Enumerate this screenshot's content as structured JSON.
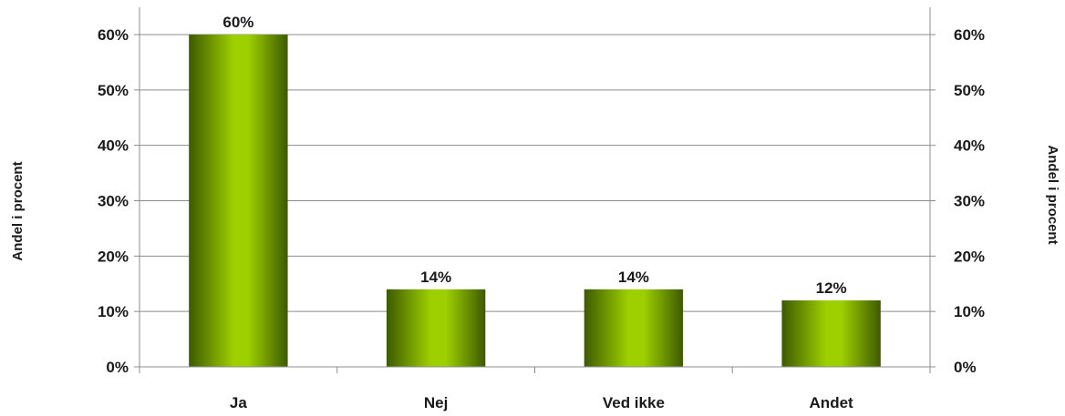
{
  "chart_data": {
    "type": "bar",
    "categories": [
      "Ja",
      "Nej",
      "Ved ikke",
      "Andet"
    ],
    "values": [
      60,
      14,
      14,
      12
    ],
    "data_labels": [
      "60%",
      "14%",
      "14%",
      "12%"
    ],
    "title": "",
    "xlabel": "",
    "ylabel": "Andel i procent",
    "ylabel_right": "Andel i procent",
    "ylim": [
      0,
      60
    ],
    "yticks": [
      0,
      10,
      20,
      30,
      40,
      50,
      60
    ],
    "ytick_labels": [
      "0%",
      "10%",
      "20%",
      "30%",
      "40%",
      "50%",
      "60%"
    ],
    "grid": true,
    "secondary_axis": true,
    "bar_color_dark": "#3d5a00",
    "bar_color_light": "#9ed000"
  }
}
